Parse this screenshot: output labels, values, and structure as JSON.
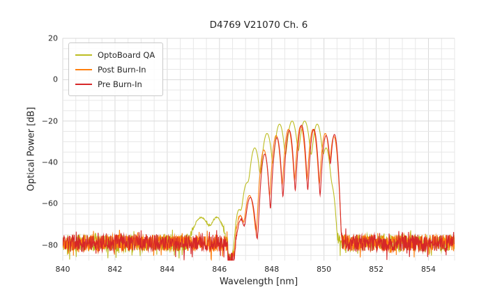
{
  "chart_data": {
    "type": "line",
    "title": "D4769 V21070 Ch. 6",
    "xlabel": "Wavelength [nm]",
    "ylabel": "Optical Power [dB]",
    "xlim": [
      840,
      855
    ],
    "ylim": [
      -87.5,
      20
    ],
    "xticks": [
      840,
      842,
      844,
      846,
      848,
      850,
      852,
      854
    ],
    "xtick_labels": [
      "840",
      "842",
      "844",
      "846",
      "848",
      "850",
      "852",
      "854"
    ],
    "yticks": [
      20,
      0,
      -20,
      -40,
      -60,
      -80
    ],
    "ytick_labels": [
      "20",
      "0",
      "−20",
      "−40",
      "−60",
      "−80"
    ],
    "grid": {
      "minor_x_step": 0.5,
      "minor_y_step": 5,
      "minor_color": "#e7e7e7",
      "major_color": "#d9d9d9"
    },
    "legend_position": "upper-left",
    "noise_dip": {
      "x0": 846.32,
      "x1": 846.62,
      "floor": -88
    },
    "series": [
      {
        "name": "OptoBoard QA",
        "color": "#bcbd22",
        "seed": 11,
        "noise": {
          "floor": -79,
          "amp": 4.0
        },
        "modes": [
          {
            "nm": 845.3,
            "dB": -67,
            "w": 0.18
          },
          {
            "nm": 845.9,
            "dB": -67,
            "w": 0.15
          },
          {
            "nm": 846.75,
            "dB": -63,
            "w": 0.07
          },
          {
            "nm": 847.05,
            "dB": -50,
            "w": 0.08
          },
          {
            "nm": 847.35,
            "dB": -33,
            "w": 0.08
          },
          {
            "nm": 847.82,
            "dB": -26,
            "w": 0.08
          },
          {
            "nm": 848.3,
            "dB": -21.5,
            "w": 0.08
          },
          {
            "nm": 848.78,
            "dB": -20,
            "w": 0.085
          },
          {
            "nm": 849.26,
            "dB": -20,
            "w": 0.085
          },
          {
            "nm": 849.74,
            "dB": -21.5,
            "w": 0.08
          },
          {
            "nm": 850.08,
            "dB": -33,
            "w": 0.07
          },
          {
            "nm": 850.3,
            "dB": -52,
            "w": 0.06
          }
        ]
      },
      {
        "name": "Post Burn-In",
        "color": "#ff7f0e",
        "seed": 22,
        "noise": {
          "floor": -79,
          "amp": 4.0
        },
        "modes": [
          {
            "nm": 846.8,
            "dB": -66,
            "w": 0.08
          },
          {
            "nm": 847.15,
            "dB": -56,
            "w": 0.08
          },
          {
            "nm": 847.7,
            "dB": -34,
            "w": 0.065
          },
          {
            "nm": 848.17,
            "dB": -27,
            "w": 0.065
          },
          {
            "nm": 848.64,
            "dB": -24,
            "w": 0.065
          },
          {
            "nm": 849.11,
            "dB": -22.5,
            "w": 0.065
          },
          {
            "nm": 849.58,
            "dB": -24,
            "w": 0.065
          },
          {
            "nm": 850.05,
            "dB": -26,
            "w": 0.065
          },
          {
            "nm": 850.38,
            "dB": -27.5,
            "w": 0.06
          }
        ]
      },
      {
        "name": "Pre Burn-In",
        "color": "#d62728",
        "seed": 33,
        "noise": {
          "floor": -79,
          "amp": 4.0
        },
        "modes": [
          {
            "nm": 846.82,
            "dB": -68,
            "w": 0.08
          },
          {
            "nm": 847.18,
            "dB": -57,
            "w": 0.08
          },
          {
            "nm": 847.73,
            "dB": -36,
            "w": 0.06
          },
          {
            "nm": 848.2,
            "dB": -28,
            "w": 0.06
          },
          {
            "nm": 848.67,
            "dB": -24.5,
            "w": 0.06
          },
          {
            "nm": 849.14,
            "dB": -22,
            "w": 0.06
          },
          {
            "nm": 849.61,
            "dB": -24,
            "w": 0.06
          },
          {
            "nm": 850.08,
            "dB": -27,
            "w": 0.06
          },
          {
            "nm": 850.4,
            "dB": -26.5,
            "w": 0.055
          }
        ]
      }
    ]
  }
}
